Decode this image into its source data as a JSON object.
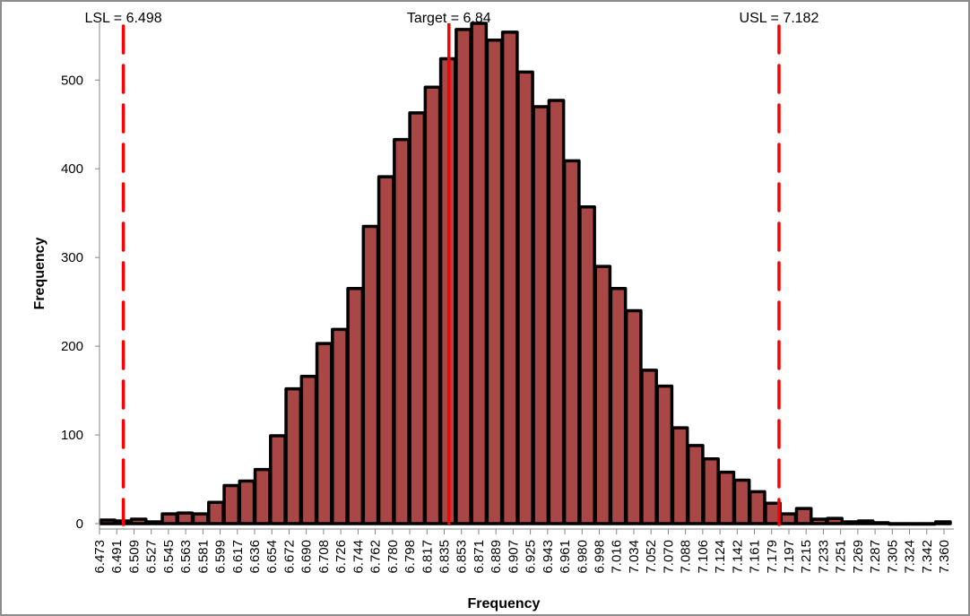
{
  "chart_data": {
    "type": "bar",
    "subtype": "histogram",
    "title": "",
    "xlabel": "Frequency",
    "ylabel": "Frequency",
    "x_tick_labels": [
      "6.473",
      "6.491",
      "6.509",
      "6.527",
      "6.545",
      "6.563",
      "6.581",
      "6.599",
      "6.617",
      "6.636",
      "6.654",
      "6.672",
      "6.690",
      "6.708",
      "6.726",
      "6.744",
      "6.762",
      "6.780",
      "6.798",
      "6.817",
      "6.835",
      "6.853",
      "6.871",
      "6.889",
      "6.907",
      "6.925",
      "6.943",
      "6.961",
      "6.980",
      "6.998",
      "7.016",
      "7.034",
      "7.052",
      "7.070",
      "7.088",
      "7.106",
      "7.124",
      "7.142",
      "7.161",
      "7.179",
      "7.197",
      "7.215",
      "7.233",
      "7.251",
      "7.269",
      "7.287",
      "7.305",
      "7.324",
      "7.342",
      "7.360"
    ],
    "xlim": [
      6.473,
      7.36
    ],
    "values": [
      4,
      3,
      5,
      2,
      11,
      12,
      11,
      24,
      43,
      48,
      61,
      99,
      152,
      166,
      203,
      219,
      265,
      335,
      391,
      433,
      463,
      492,
      524,
      557,
      564,
      545,
      554,
      509,
      470,
      477,
      409,
      357,
      290,
      265,
      240,
      173,
      155,
      108,
      88,
      73,
      58,
      49,
      36,
      23,
      11,
      17,
      5,
      6,
      2,
      3,
      1,
      0,
      0,
      0,
      2
    ],
    "ylim": [
      0,
      566
    ],
    "y_ticks": [
      0,
      100,
      200,
      300,
      400,
      500
    ],
    "grid": false,
    "legend": "none",
    "colors": {
      "bar_fill": "#A84745",
      "bar_stroke": "#000000",
      "ref_line": "#FF0000"
    },
    "reference_lines": [
      {
        "label": "LSL = 6.498",
        "value": 6.498,
        "style": "dashed"
      },
      {
        "label": "Target = 6.84",
        "value": 6.84,
        "style": "solid"
      },
      {
        "label": "USL = 7.182",
        "value": 7.182,
        "style": "dashed"
      }
    ]
  }
}
